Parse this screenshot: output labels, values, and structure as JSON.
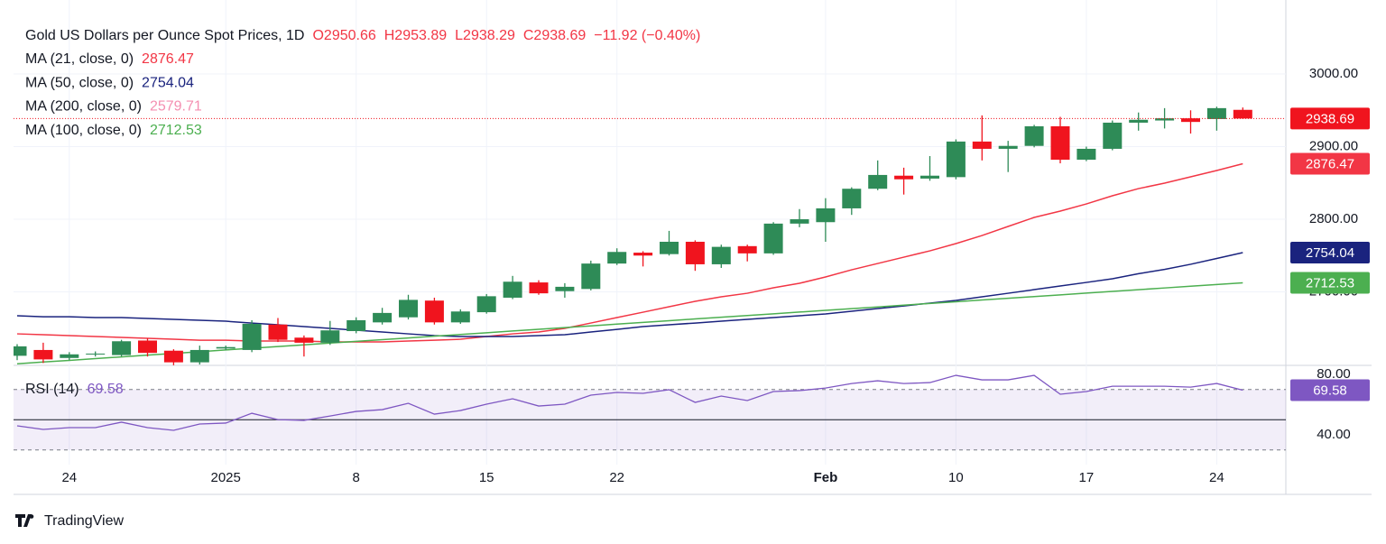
{
  "branding": "TradingView",
  "chart_data": {
    "type": "candlestick",
    "title": "Gold US Dollars per Ounce Spot Prices, 1D",
    "quote": [
      "O2950.66",
      "H2953.89",
      "L2938.29",
      "C2938.69",
      "−11.92 (−0.40%)"
    ],
    "quote_color": "#f23645",
    "up_color": "#2e8b57",
    "down_color": "#f0141e",
    "categories": [
      null,
      null,
      "24",
      null,
      null,
      null,
      null,
      null,
      "2025",
      null,
      null,
      null,
      null,
      "8",
      null,
      null,
      null,
      null,
      "15",
      null,
      null,
      null,
      null,
      "22",
      null,
      null,
      null,
      null,
      null,
      null,
      null,
      "Feb",
      null,
      null,
      null,
      null,
      "10",
      null,
      null,
      null,
      null,
      "17",
      null,
      null,
      null,
      null,
      "24",
      null
    ],
    "open": [
      2612,
      2620,
      2609,
      2614,
      2613,
      2633,
      2619,
      2603,
      2622,
      2620,
      2655,
      2637,
      2630,
      2646,
      2658,
      2665,
      2688,
      2658,
      2672,
      2692,
      2713,
      2701,
      2704,
      2739,
      2754,
      2752,
      2769,
      2738,
      2763,
      2753,
      2794,
      2796,
      2815,
      2842,
      2860,
      2856,
      2858,
      2907,
      2897,
      2901,
      2928,
      2882,
      2897,
      2933,
      2936,
      2939,
      2938,
      2950.66
    ],
    "high": [
      2628,
      2630,
      2617,
      2618,
      2634,
      2636,
      2621,
      2626,
      2626,
      2661,
      2664,
      2640,
      2660,
      2665,
      2678,
      2696,
      2692,
      2676,
      2697,
      2722,
      2716,
      2712,
      2743,
      2760,
      2756,
      2784,
      2771,
      2765,
      2765,
      2796,
      2814,
      2829,
      2844,
      2881,
      2871,
      2887,
      2910,
      2943,
      2908,
      2930,
      2941,
      2900,
      2936,
      2947,
      2953,
      2950,
      2955,
      2953.89
    ],
    "low": [
      2606,
      2602,
      2606,
      2611,
      2611,
      2611,
      2599,
      2600,
      2620,
      2617,
      2631,
      2611,
      2627,
      2643,
      2655,
      2662,
      2655,
      2656,
      2670,
      2690,
      2696,
      2692,
      2702,
      2737,
      2735,
      2750,
      2729,
      2733,
      2742,
      2751,
      2789,
      2769,
      2806,
      2840,
      2834,
      2853,
      2855,
      2881,
      2865,
      2899,
      2877,
      2880,
      2895,
      2922,
      2925,
      2918,
      2922,
      2938.29
    ],
    "close": [
      2625,
      2607,
      2614,
      2615,
      2632,
      2616,
      2603,
      2620,
      2624,
      2656,
      2634,
      2630,
      2647,
      2661,
      2671,
      2689,
      2658,
      2673,
      2694,
      2714,
      2698,
      2707,
      2739,
      2755,
      2750,
      2769,
      2738,
      2762,
      2753,
      2794,
      2800,
      2815,
      2842,
      2861,
      2855,
      2860,
      2907,
      2897,
      2901,
      2928,
      2882,
      2897,
      2933,
      2937,
      2939,
      2934,
      2953,
      2938.69
    ],
    "series": [
      {
        "name": "MA (21, close, 0)",
        "color": "#f23645",
        "last": 2876.47,
        "values": [
          2642.2,
          2641.0,
          2639.8,
          2638.5,
          2637.3,
          2636.0,
          2634.8,
          2633.5,
          2633.5,
          2632.3,
          2632.3,
          2632.3,
          2631.1,
          2631.1,
          2631.1,
          2632.3,
          2633.5,
          2634.8,
          2638.5,
          2642.2,
          2644.7,
          2649.7,
          2657.1,
          2664.6,
          2672.0,
          2679.5,
          2687.0,
          2693.2,
          2698.1,
          2705.6,
          2711.8,
          2720.5,
          2730.4,
          2739.1,
          2747.8,
          2756.5,
          2766.5,
          2777.6,
          2790.1,
          2802.5,
          2811.2,
          2821.1,
          2832.3,
          2842.2,
          2849.7,
          2858.4,
          2867.1,
          2876.47
        ]
      },
      {
        "name": "MA (50, close, 0)",
        "color": "#1a237e",
        "last": 2754.04,
        "values": [
          2667.1,
          2665.8,
          2665.8,
          2664.6,
          2664.6,
          2663.4,
          2662.1,
          2660.9,
          2659.6,
          2657.1,
          2654.7,
          2652.2,
          2649.7,
          2647.2,
          2644.7,
          2642.2,
          2639.8,
          2638.5,
          2638.5,
          2638.5,
          2639.8,
          2641.0,
          2644.7,
          2648.4,
          2652.2,
          2654.7,
          2657.1,
          2659.6,
          2662.1,
          2664.6,
          2667.1,
          2669.6,
          2673.3,
          2677.0,
          2680.7,
          2684.5,
          2688.2,
          2693.2,
          2698.1,
          2703.1,
          2708.1,
          2713.0,
          2718.0,
          2725.0,
          2731.0,
          2738.0,
          2746.0,
          2754.04
        ]
      },
      {
        "name": "MA (200, close, 0)",
        "color": "#f48fb1",
        "last": 2579.71
      },
      {
        "name": "MA (100, close, 0)",
        "color": "#4caf50",
        "last": 2712.53,
        "values": [
          2601.0,
          2603.4,
          2605.7,
          2608.1,
          2610.5,
          2612.9,
          2615.2,
          2617.6,
          2620.0,
          2622.4,
          2624.7,
          2627.1,
          2629.5,
          2631.8,
          2634.2,
          2636.6,
          2639.0,
          2641.3,
          2643.7,
          2646.1,
          2648.5,
          2650.8,
          2653.2,
          2655.6,
          2658.0,
          2660.3,
          2662.7,
          2665.1,
          2667.4,
          2669.8,
          2672.2,
          2674.6,
          2676.9,
          2679.3,
          2681.7,
          2684.1,
          2686.4,
          2688.8,
          2691.2,
          2693.5,
          2695.9,
          2698.3,
          2700.7,
          2703.0,
          2705.4,
          2707.8,
          2710.2,
          2712.53
        ]
      }
    ],
    "ylim": [
      2598.8,
      3101.9
    ],
    "yticks": [
      {
        "value": 2700,
        "label": "2700.00"
      },
      {
        "value": 2800,
        "label": "2800.00"
      },
      {
        "value": 2900,
        "label": "2900.00"
      },
      {
        "value": 3000,
        "label": "3000.00"
      }
    ],
    "grid": true,
    "rsi": {
      "name": "RSI (14)",
      "color": "#7e57c2",
      "last": 69.58,
      "values": [
        46.0,
        43.6,
        44.8,
        44.8,
        48.4,
        44.8,
        43.0,
        47.2,
        47.8,
        54.3,
        50.1,
        49.6,
        52.5,
        55.5,
        56.7,
        60.9,
        53.7,
        56.1,
        60.3,
        63.9,
        59.1,
        60.3,
        66.3,
        68.1,
        67.5,
        69.9,
        61.5,
        65.7,
        62.7,
        68.7,
        69.3,
        71.0,
        74.0,
        75.8,
        74.0,
        74.6,
        79.4,
        76.4,
        76.4,
        79.4,
        66.9,
        68.7,
        72.2,
        72.2,
        72.2,
        71.6,
        74.0,
        69.58
      ],
      "ylim": [
        20.3,
        86
      ],
      "yticks": [
        {
          "value": 80,
          "label": "80.00"
        },
        {
          "value": 40,
          "label": "40.00"
        }
      ],
      "levels": [
        70,
        50,
        30
      ]
    }
  }
}
